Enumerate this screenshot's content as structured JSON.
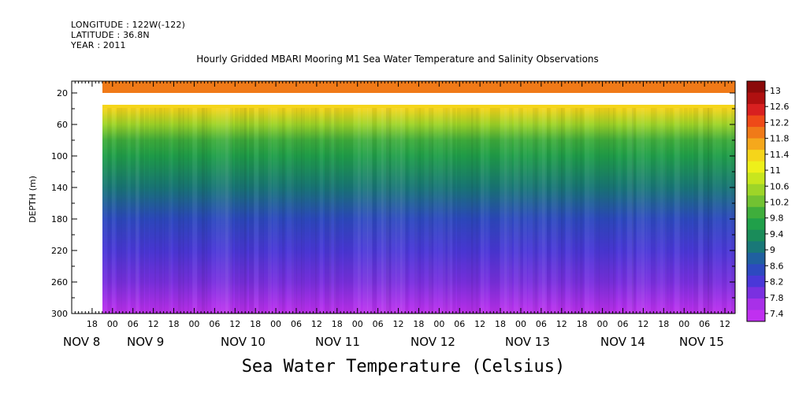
{
  "header": {
    "longitude": "LONGITUDE : 122W(-122)",
    "latitude": "LATITUDE : 36.8N",
    "year": "YEAR : 2011"
  },
  "footer": "Sea Water Temperature (Celsius)",
  "chart_data": {
    "type": "heatmap",
    "title": "Hourly Gridded MBARI Mooring M1 Sea Water Temperature and Salinity Observations",
    "ylabel": "DEPTH (m)",
    "ylim": [
      300,
      5
    ],
    "y_ticks": [
      20,
      60,
      100,
      140,
      180,
      220,
      260,
      300
    ],
    "x_hour_labels": [
      "18",
      "00",
      "06",
      "12",
      "18",
      "00",
      "06",
      "12",
      "18",
      "00",
      "06",
      "12",
      "18",
      "00",
      "06",
      "12",
      "18",
      "00",
      "06",
      "12",
      "18",
      "00",
      "06",
      "12",
      "18",
      "00",
      "06",
      "12",
      "18",
      "00",
      "06",
      "12"
    ],
    "x_day_labels": [
      "NOV 8",
      "NOV 9",
      "NOV 10",
      "NOV 11",
      "NOV 12",
      "NOV 13",
      "NOV 14",
      "NOV 15"
    ],
    "time_range": [
      "2011-11-07T12:00",
      "2011-11-15T15:00"
    ],
    "colorbar": {
      "levels": [
        "13",
        "12.6",
        "12.2",
        "11.8",
        "11.4",
        "11",
        "10.6",
        "10.2",
        "9.8",
        "9.4",
        "9",
        "8.6",
        "8.2",
        "7.8",
        "7.4"
      ],
      "colors": [
        "#8b0a0a",
        "#b01010",
        "#d82020",
        "#ee4a18",
        "#f07a18",
        "#f5a81c",
        "#f5d51a",
        "#eef01a",
        "#c8e61e",
        "#9ed528",
        "#72c232",
        "#3fae3c",
        "#20a04a",
        "#1a8c5a",
        "#197878",
        "#2060a0",
        "#2d4ac0",
        "#4a38d8",
        "#7a30e0",
        "#a830e8",
        "#c030f0"
      ]
    },
    "profile": [
      {
        "depth": 10,
        "value": 12.0
      },
      {
        "depth": 40,
        "value": 11.3
      },
      {
        "depth": 60,
        "value": 10.6
      },
      {
        "depth": 80,
        "value": 10.0
      },
      {
        "depth": 100,
        "value": 9.7
      },
      {
        "depth": 140,
        "value": 9.1
      },
      {
        "depth": 180,
        "value": 8.7
      },
      {
        "depth": 220,
        "value": 8.3
      },
      {
        "depth": 260,
        "value": 7.9
      },
      {
        "depth": 300,
        "value": 7.5
      }
    ],
    "data_gap_depth": [
      20,
      35
    ]
  }
}
